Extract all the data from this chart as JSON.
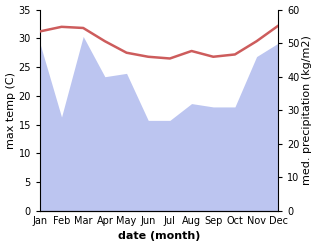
{
  "months": [
    "Jan",
    "Feb",
    "Mar",
    "Apr",
    "May",
    "Jun",
    "Jul",
    "Aug",
    "Sep",
    "Oct",
    "Nov",
    "Dec"
  ],
  "temperature": [
    31.2,
    32.0,
    31.8,
    29.5,
    27.5,
    26.8,
    26.5,
    27.8,
    26.8,
    27.2,
    29.5,
    32.2
  ],
  "precipitation": [
    50,
    28,
    52,
    40,
    41,
    27,
    27,
    32,
    31,
    31,
    46,
    50
  ],
  "temp_color": "#cd5c5c",
  "precip_fill_color": "#bcc5f0",
  "background_color": "#ffffff",
  "xlabel": "date (month)",
  "ylabel_left": "max temp (C)",
  "ylabel_right": "med. precipitation (kg/m2)",
  "ylim_left": [
    0,
    35
  ],
  "ylim_right": [
    0,
    60
  ],
  "temp_linewidth": 1.8,
  "xlabel_fontsize": 8,
  "ylabel_fontsize": 8,
  "tick_fontsize": 7,
  "yticks_left": [
    0,
    5,
    10,
    15,
    20,
    25,
    30,
    35
  ],
  "yticks_right": [
    0,
    10,
    20,
    30,
    40,
    50,
    60
  ]
}
